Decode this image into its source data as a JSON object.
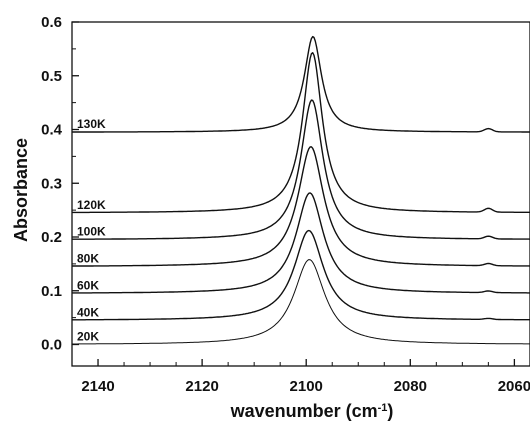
{
  "chart_data": {
    "type": "line",
    "xlabel": "wavenumber (cm",
    "xlabel_sup": "-1",
    "xlabel_suffix": ")",
    "ylabel": "Absorbance",
    "xlim": [
      2145,
      2057
    ],
    "ylim": [
      -0.04,
      0.6
    ],
    "x_reversed": true,
    "x_ticks": [
      2140,
      2120,
      2100,
      2080,
      2060
    ],
    "y_ticks": [
      0.0,
      0.1,
      0.2,
      0.3,
      0.4,
      0.5,
      0.6
    ],
    "y_tick_labels": [
      "0.0",
      "0.1",
      "0.2",
      "0.3",
      "0.4",
      "0.5",
      "0.6"
    ],
    "grid": false,
    "legend": "none",
    "series": [
      {
        "name": "20K",
        "baseline": 0.0,
        "peak_x": 2099.4,
        "height": 0.158,
        "width": 3.6,
        "band_2065": 0.0
      },
      {
        "name": "40K",
        "baseline": 0.045,
        "peak_x": 2099.5,
        "height": 0.167,
        "width": 3.4,
        "band_2065": 0.002
      },
      {
        "name": "60K",
        "baseline": 0.095,
        "peak_x": 2099.3,
        "height": 0.187,
        "width": 3.2,
        "band_2065": 0.003
      },
      {
        "name": "80K",
        "baseline": 0.145,
        "peak_x": 2099.1,
        "height": 0.223,
        "width": 3.0,
        "band_2065": 0.004
      },
      {
        "name": "100K",
        "baseline": 0.195,
        "peak_x": 2098.9,
        "height": 0.26,
        "width": 2.6,
        "band_2065": 0.005
      },
      {
        "name": "120K",
        "baseline": 0.245,
        "peak_x": 2098.8,
        "height": 0.298,
        "width": 2.3,
        "band_2065": 0.007
      },
      {
        "name": "130K",
        "baseline": 0.395,
        "peak_x": 2098.7,
        "height": 0.178,
        "width": 2.0,
        "band_2065": 0.006
      }
    ]
  }
}
